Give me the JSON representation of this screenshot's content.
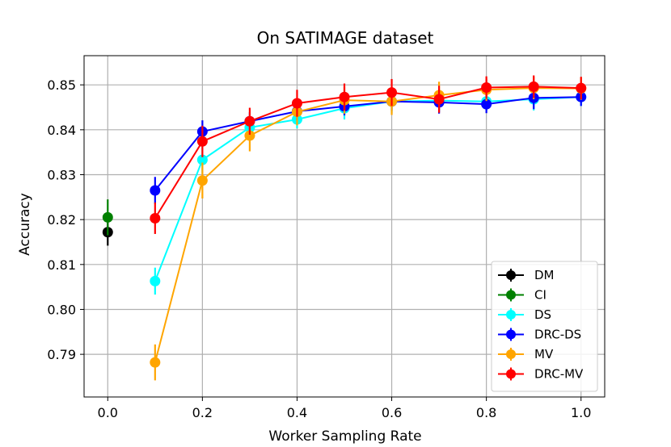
{
  "chart_data": {
    "type": "line",
    "title": "On SATIMAGE dataset",
    "xlabel": "Worker Sampling Rate",
    "ylabel": "Accuracy",
    "xlim": [
      -0.05,
      1.05
    ],
    "ylim": [
      0.7805,
      0.8565
    ],
    "xticks": [
      0.0,
      0.2,
      0.4,
      0.6,
      0.8,
      1.0
    ],
    "xtick_labels": [
      "0.0",
      "0.2",
      "0.4",
      "0.6",
      "0.8",
      "1.0"
    ],
    "yticks": [
      0.79,
      0.8,
      0.81,
      0.82,
      0.83,
      0.84,
      0.85
    ],
    "ytick_labels": [
      "0.79",
      "0.80",
      "0.81",
      "0.82",
      "0.83",
      "0.84",
      "0.85"
    ],
    "grid": true,
    "legend_position": "bottom-right",
    "series": [
      {
        "name": "DM",
        "color": "#000000",
        "x": [
          0.0
        ],
        "y": [
          0.8172
        ],
        "err": [
          0.003
        ]
      },
      {
        "name": "CI",
        "color": "#008000",
        "x": [
          0.0
        ],
        "y": [
          0.8205
        ],
        "err": [
          0.004
        ]
      },
      {
        "name": "DS",
        "color": "#00ffff",
        "x": [
          0.1,
          0.2,
          0.3,
          0.4,
          0.5,
          0.6,
          0.7,
          0.8,
          0.9,
          1.0
        ],
        "y": [
          0.8063,
          0.8333,
          0.8405,
          0.8423,
          0.8448,
          0.8463,
          0.8465,
          0.8463,
          0.8468,
          0.8473
        ],
        "err": [
          0.003,
          0.003,
          0.0025,
          0.002,
          0.0025,
          0.0025,
          0.0025,
          0.002,
          0.0025,
          0.002
        ]
      },
      {
        "name": "DRC-DS",
        "color": "#0000ff",
        "x": [
          0.1,
          0.2,
          0.3,
          0.4,
          0.5,
          0.6,
          0.7,
          0.8,
          0.9,
          1.0
        ],
        "y": [
          0.8265,
          0.8396,
          0.8419,
          0.8441,
          0.8452,
          0.8463,
          0.8461,
          0.8457,
          0.8471,
          0.8473
        ],
        "err": [
          0.003,
          0.0025,
          0.002,
          0.002,
          0.002,
          0.002,
          0.0025,
          0.002,
          0.0025,
          0.002
        ]
      },
      {
        "name": "MV",
        "color": "#ffa500",
        "x": [
          0.1,
          0.2,
          0.3,
          0.4,
          0.5,
          0.6,
          0.7,
          0.8,
          0.9,
          1.0
        ],
        "y": [
          0.7882,
          0.8287,
          0.8387,
          0.844,
          0.8466,
          0.8463,
          0.8477,
          0.8489,
          0.8493,
          0.8492
        ],
        "err": [
          0.004,
          0.004,
          0.0035,
          0.003,
          0.003,
          0.003,
          0.003,
          0.0025,
          0.0025,
          0.0025
        ]
      },
      {
        "name": "DRC-MV",
        "color": "#ff0000",
        "x": [
          0.1,
          0.2,
          0.3,
          0.4,
          0.5,
          0.6,
          0.7,
          0.8,
          0.9,
          1.0
        ],
        "y": [
          0.8203,
          0.8374,
          0.8419,
          0.8459,
          0.8473,
          0.8483,
          0.8468,
          0.8494,
          0.8496,
          0.8493
        ],
        "err": [
          0.0035,
          0.0035,
          0.003,
          0.003,
          0.003,
          0.003,
          0.003,
          0.0025,
          0.0025,
          0.0025
        ]
      }
    ]
  }
}
